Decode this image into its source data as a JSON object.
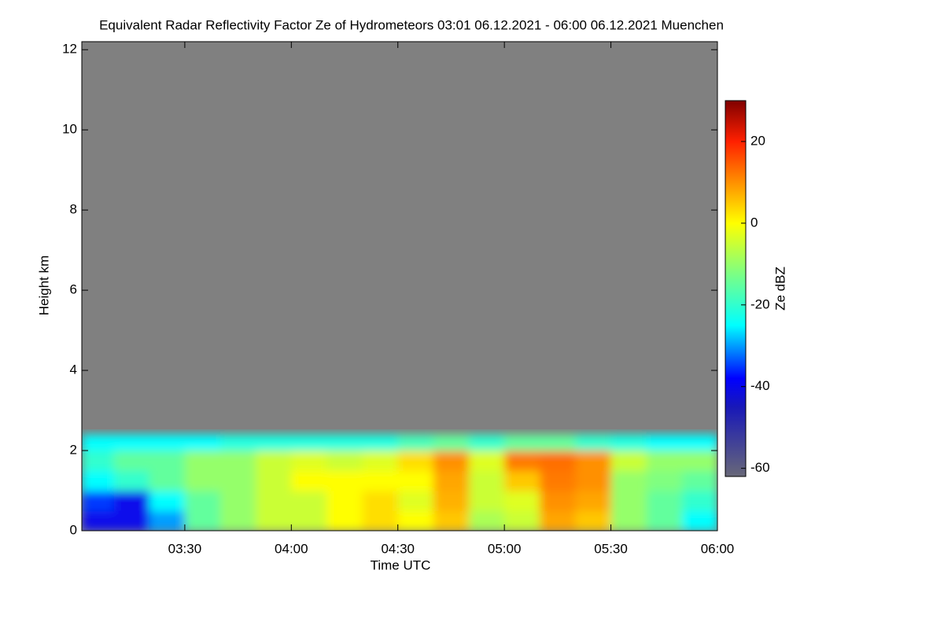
{
  "chart_data": {
    "type": "heatmap",
    "title": "Equivalent Radar Reflectivity Factor Ze of Hydrometeors   03:01 06.12.2021 - 06:00 06.12.2021 Muenchen",
    "xlabel": "Time UTC",
    "ylabel": "Height km",
    "colorbar_label": "Ze dBZ",
    "xlim": [
      "03:01",
      "06:00"
    ],
    "xticks": [
      "03:30",
      "04:00",
      "04:30",
      "05:00",
      "05:30",
      "06:00"
    ],
    "ylim": [
      0,
      12.2
    ],
    "yticks": [
      0,
      2,
      4,
      6,
      8,
      10,
      12
    ],
    "zlim": [
      -62,
      30
    ],
    "zticks": [
      -60,
      -40,
      -20,
      0,
      20
    ],
    "background": "#808080",
    "colorscale": [
      [
        -62,
        "#686878"
      ],
      [
        -45,
        "#1818b8"
      ],
      [
        -38,
        "#0000ff"
      ],
      [
        -25,
        "#00ffff"
      ],
      [
        -12,
        "#80ff80"
      ],
      [
        0,
        "#ffff00"
      ],
      [
        10,
        "#ff9000"
      ],
      [
        20,
        "#ff2000"
      ],
      [
        30,
        "#800000"
      ]
    ],
    "x_edges": [
      "03:01",
      "03:10",
      "03:20",
      "03:30",
      "03:40",
      "03:50",
      "04:00",
      "04:10",
      "04:20",
      "04:30",
      "04:40",
      "04:50",
      "05:00",
      "05:10",
      "05:20",
      "05:30",
      "05:40",
      "05:50",
      "06:00"
    ],
    "y_edges": [
      0,
      0.5,
      1,
      1.5,
      2,
      2.4
    ],
    "z": [
      [
        -40,
        -40,
        -30,
        -15,
        -10,
        -5,
        -5,
        0,
        3,
        0,
        5,
        -8,
        -5,
        8,
        5,
        -10,
        -15,
        -25
      ],
      [
        -35,
        -40,
        -25,
        -15,
        -10,
        -5,
        -5,
        0,
        3,
        -3,
        7,
        -5,
        -3,
        10,
        8,
        -10,
        -15,
        -20
      ],
      [
        -25,
        -20,
        -15,
        -10,
        -10,
        -5,
        0,
        0,
        0,
        0,
        8,
        -5,
        5,
        12,
        10,
        -10,
        -12,
        -15
      ],
      [
        -20,
        -15,
        -15,
        -10,
        -10,
        -5,
        -3,
        -5,
        -3,
        3,
        10,
        -3,
        12,
        13,
        10,
        -5,
        -10,
        -10
      ],
      [
        -25,
        -25,
        -25,
        -25,
        -22,
        -22,
        -22,
        -22,
        -22,
        -18,
        -15,
        -20,
        -15,
        -15,
        -20,
        -22,
        -25,
        -25
      ]
    ]
  }
}
